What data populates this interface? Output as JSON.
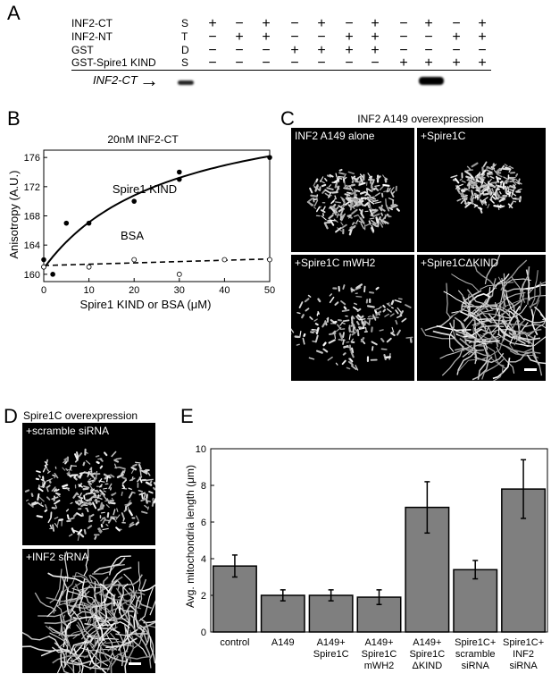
{
  "panels": {
    "a": "A",
    "b": "B",
    "c": "C",
    "d": "D",
    "e": "E"
  },
  "panelA": {
    "rows": [
      {
        "label": "INF2-CT",
        "code": "S",
        "signs": [
          "+",
          "−",
          "+",
          "−",
          "+",
          "−",
          "+",
          "−",
          "+",
          "−",
          "+"
        ]
      },
      {
        "label": "INF2-NT",
        "code": "T",
        "signs": [
          "−",
          "+",
          "+",
          "−",
          "−",
          "+",
          "+",
          "−",
          "−",
          "+",
          "+"
        ]
      },
      {
        "label": "GST",
        "code": "D",
        "signs": [
          "−",
          "−",
          "−",
          "+",
          "+",
          "+",
          "+",
          "−",
          "−",
          "−",
          "−"
        ]
      },
      {
        "label": "GST-Spire1 KIND",
        "code": "S",
        "signs": [
          "−",
          "−",
          "−",
          "−",
          "−",
          "−",
          "−",
          "+",
          "+",
          "+",
          "+"
        ]
      }
    ],
    "blot_label": "INF2-CT",
    "arrow": "→"
  },
  "panelC": {
    "title": "INF2 A149 overexpression",
    "images": [
      "INF2 A149 alone",
      "+Spire1C",
      "+Spire1C mWH2",
      "+Spire1CΔKIND"
    ]
  },
  "panelD": {
    "title": "Spire1C overexpression",
    "images": [
      "+scramble siRNA",
      "+INF2 siRNA"
    ]
  },
  "chart_data": [
    {
      "type": "scatter",
      "title": "20nM INF2-CT",
      "xlabel": "Spire1 KIND or BSA (μM)",
      "ylabel": "Anisotropy (A.U.)",
      "xlim": [
        0,
        50
      ],
      "ylim": [
        159,
        177
      ],
      "xticks": [
        0,
        10,
        20,
        30,
        40,
        50
      ],
      "yticks": [
        160,
        164,
        168,
        172,
        176
      ],
      "series": [
        {
          "name": "Spire1 KIND",
          "marker": "filled-circle",
          "points": [
            [
              0,
              161
            ],
            [
              0,
              162
            ],
            [
              2,
              160
            ],
            [
              5,
              167
            ],
            [
              10,
              167
            ],
            [
              20,
              170
            ],
            [
              30,
              173
            ],
            [
              30,
              174
            ],
            [
              50,
              176
            ]
          ],
          "fit_line": "solid"
        },
        {
          "name": "BSA",
          "marker": "open-circle",
          "points": [
            [
              0,
              161
            ],
            [
              10,
              161
            ],
            [
              20,
              162
            ],
            [
              30,
              160
            ],
            [
              40,
              162
            ],
            [
              50,
              162
            ]
          ],
          "fit_line": "dashed"
        }
      ]
    },
    {
      "type": "bar",
      "ylabel": "Avg. mitochondria length (μm)",
      "ylim": [
        0,
        10
      ],
      "yticks": [
        0,
        2,
        4,
        6,
        8,
        10
      ],
      "categories": [
        "control",
        "A149",
        "A149+\nSpire1C",
        "A149+\nSpire1C\nmWH2",
        "A149+\nSpire1C\nΔKIND",
        "Spire1C+\nscramble\nsiRNA",
        "Spire1C+\nINF2\nsiRNA"
      ],
      "values": [
        3.6,
        2.0,
        2.0,
        1.9,
        6.8,
        3.4,
        7.8
      ],
      "errors": [
        0.6,
        0.3,
        0.3,
        0.4,
        1.4,
        0.5,
        1.6
      ],
      "bar_color": "#7f7f7f"
    }
  ]
}
